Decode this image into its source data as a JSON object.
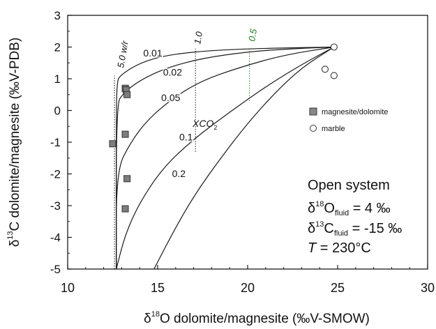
{
  "chart_data": {
    "type": "line",
    "title": "",
    "xlabel_prefix": "δ",
    "xlabel_sup": "18",
    "xlabel_rest": "O dolomite/magnesite (‰V-SMOW)",
    "ylabel_prefix": "δ",
    "ylabel_sup": "13",
    "ylabel_rest": "C dolomite/magnesite (‰V-PDB)",
    "xlim": [
      10,
      30
    ],
    "ylim": [
      -5,
      3
    ],
    "xticks": [
      "10",
      "15",
      "20",
      "25",
      "30"
    ],
    "yticks": [
      "3",
      "2",
      "1",
      "0",
      "-1",
      "-2",
      "-3",
      "-4",
      "-5"
    ],
    "grid": false,
    "legend_position": "right-middle",
    "legend": [
      {
        "label": "magnesite/dolomite",
        "marker": "filled-square"
      },
      {
        "label": "marble",
        "marker": "open-circle"
      }
    ],
    "series": [
      {
        "name": "0.01",
        "values": [
          [
            12.7,
            -5
          ],
          [
            12.7,
            0.0
          ],
          [
            12.75,
            0.9
          ],
          [
            12.9,
            1.1
          ],
          [
            14.0,
            1.5
          ],
          [
            15.5,
            1.75
          ],
          [
            18.0,
            1.9
          ],
          [
            21.0,
            1.96
          ],
          [
            24.8,
            2.0
          ]
        ]
      },
      {
        "name": "0.02",
        "values": [
          [
            12.7,
            -5
          ],
          [
            12.7,
            0.2
          ],
          [
            13.1,
            0.55
          ],
          [
            14.0,
            0.95
          ],
          [
            15.5,
            1.35
          ],
          [
            17.5,
            1.65
          ],
          [
            20.0,
            1.85
          ],
          [
            22.5,
            1.95
          ],
          [
            24.8,
            2.0
          ]
        ]
      },
      {
        "name": "0.05",
        "values": [
          [
            12.7,
            -5
          ],
          [
            12.7,
            -1.9
          ],
          [
            13.5,
            -1.0
          ],
          [
            14.5,
            -0.25
          ],
          [
            16.0,
            0.45
          ],
          [
            17.5,
            0.95
          ],
          [
            19.5,
            1.35
          ],
          [
            22.0,
            1.75
          ],
          [
            24.8,
            2.0
          ]
        ]
      },
      {
        "name": "0.1",
        "values": [
          [
            12.7,
            -5
          ],
          [
            13.2,
            -3.9
          ],
          [
            14.0,
            -2.9
          ],
          [
            15.3,
            -1.8
          ],
          [
            17.0,
            -0.9
          ],
          [
            19.0,
            -0.05
          ],
          [
            21.0,
            0.75
          ],
          [
            23.0,
            1.45
          ],
          [
            24.8,
            2.0
          ]
        ]
      },
      {
        "name": "0.2",
        "values": [
          [
            14.8,
            -5
          ],
          [
            15.8,
            -3.9
          ],
          [
            17.0,
            -2.7
          ],
          [
            18.5,
            -1.5
          ],
          [
            20.0,
            -0.4
          ],
          [
            21.5,
            0.55
          ],
          [
            23.0,
            1.35
          ],
          [
            24.8,
            2.0
          ]
        ]
      }
    ],
    "wr_lines": [
      {
        "label": "5.0 w/r",
        "color": "#111111",
        "values": [
          [
            12.6,
            -5
          ],
          [
            12.6,
            1.1
          ]
        ]
      },
      {
        "label": "1.0",
        "color": "#111111",
        "values": [
          [
            17.1,
            -1.3
          ],
          [
            17.1,
            1.95
          ]
        ]
      },
      {
        "label": "0.5",
        "color": "#1e7a1e",
        "values": [
          [
            20.1,
            0.3
          ],
          [
            20.1,
            1.96
          ]
        ]
      }
    ],
    "curve_labels": [
      {
        "text": "0.01",
        "x": 14.2,
        "y": 1.7
      },
      {
        "text": "0.02",
        "x": 15.3,
        "y": 1.1
      },
      {
        "text": "0.05",
        "x": 15.2,
        "y": 0.3
      },
      {
        "text": "0.1",
        "x": 16.2,
        "y": -0.95
      },
      {
        "text": "0.2",
        "x": 15.8,
        "y": -2.1
      }
    ],
    "xco2_label": {
      "text": "XCO",
      "sub": "2",
      "x": 16.8,
      "y": -0.95
    },
    "magnesite_dolomite": [
      [
        12.5,
        -1.05
      ],
      [
        13.2,
        0.7
      ],
      [
        13.25,
        0.65
      ],
      [
        13.3,
        0.5
      ],
      [
        13.2,
        -0.75
      ],
      [
        13.3,
        -2.15
      ],
      [
        13.2,
        -3.1
      ]
    ],
    "marble": [
      [
        24.8,
        2.0
      ],
      [
        24.3,
        1.3
      ],
      [
        24.8,
        1.1
      ]
    ],
    "annotation": {
      "line1": "Open system",
      "line2_prefix": "δ",
      "line2_sup": "18",
      "line2_main": "O",
      "line2_sub": "fluid",
      "line2_rest": " = 4 ‰",
      "line3_prefix": "δ",
      "line3_sup": "13",
      "line3_main": "C",
      "line3_sub": "fluid",
      "line3_rest": " = -15 ‰",
      "line4_var": "T",
      "line4_rest": " = 230°C"
    }
  }
}
